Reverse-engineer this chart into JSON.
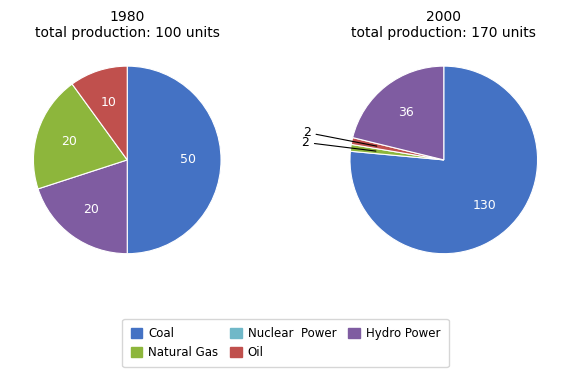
{
  "chart1": {
    "title": "1980\ntotal production: 100 units",
    "values": [
      50,
      20,
      20,
      10
    ],
    "labels": [
      "50",
      "20",
      "20",
      "10"
    ],
    "colors": [
      "#4472C4",
      "#7F5CA1",
      "#8DB63C",
      "#C0504D"
    ],
    "startangle": 90
  },
  "chart2": {
    "title": "2000\ntotal production: 170 units",
    "values": [
      130,
      2,
      2,
      36
    ],
    "labels": [
      "130",
      "2",
      "2",
      "36"
    ],
    "colors": [
      "#4472C4",
      "#8DB63C",
      "#C0504D",
      "#7F5CA1"
    ],
    "startangle": 90
  },
  "legend_labels": [
    "Coal",
    "Natural Gas",
    "Nuclear  Power",
    "Oil",
    "Hydro Power"
  ],
  "legend_colors": [
    "#4472C4",
    "#8DB63C",
    "#70B8C8",
    "#C0504D",
    "#7F5CA1"
  ],
  "bg_color": "#FFFFFF",
  "title_fontsize": 10,
  "label_fontsize": 9
}
